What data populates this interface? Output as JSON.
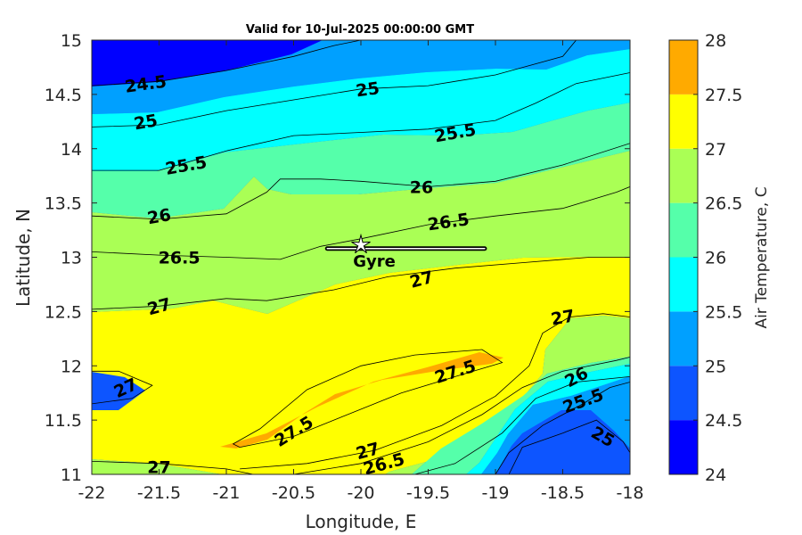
{
  "chart_data": {
    "type": "contour",
    "title": "Valid for 10-Jul-2025 00:00:00 GMT",
    "xlabel": "Longitude, E",
    "ylabel": "Latitude, N",
    "xlim": [
      -22,
      -18
    ],
    "ylim": [
      11,
      15
    ],
    "x_ticks": [
      "-22",
      "-21.5",
      "-21",
      "-20.5",
      "-20",
      "-19.5",
      "-19",
      "-18.5",
      "-18"
    ],
    "y_ticks": [
      "11",
      "11.5",
      "12",
      "12.5",
      "13",
      "13.5",
      "14",
      "14.5",
      "15"
    ],
    "colorbar": {
      "label": "Air Temperature, C",
      "range": [
        24,
        28
      ],
      "ticks": [
        "24",
        "24.5",
        "25",
        "25.5",
        "26",
        "26.5",
        "27",
        "27.5",
        "28"
      ],
      "levels": [
        {
          "min": 24.0,
          "max": 24.5,
          "color": "#0000ff"
        },
        {
          "min": 24.5,
          "max": 25.0,
          "color": "#0d55ff"
        },
        {
          "min": 25.0,
          "max": 25.5,
          "color": "#00a0ff"
        },
        {
          "min": 25.5,
          "max": 26.0,
          "color": "#00ffff"
        },
        {
          "min": 26.0,
          "max": 26.5,
          "color": "#55ffaa"
        },
        {
          "min": 26.5,
          "max": 27.0,
          "color": "#aaff55"
        },
        {
          "min": 27.0,
          "max": 27.5,
          "color": "#ffff00"
        },
        {
          "min": 27.5,
          "max": 28.0,
          "color": "#ffaa00"
        }
      ]
    },
    "contours": [
      {
        "level": 24.5,
        "points": [
          [
            -22,
            14.58
          ],
          [
            -21.5,
            14.62
          ],
          [
            -21,
            14.72
          ],
          [
            -20.5,
            14.85
          ],
          [
            -20.2,
            14.95
          ],
          [
            -20.0,
            15.0
          ]
        ]
      },
      {
        "level": 25.0,
        "points": [
          [
            -22,
            14.2
          ],
          [
            -21.5,
            14.22
          ],
          [
            -21,
            14.35
          ],
          [
            -20.5,
            14.45
          ],
          [
            -20,
            14.55
          ],
          [
            -19.5,
            14.58
          ],
          [
            -19,
            14.68
          ],
          [
            -18.5,
            14.85
          ],
          [
            -18.4,
            15.0
          ]
        ]
      },
      {
        "level": 25.5,
        "points": [
          [
            -22,
            13.8
          ],
          [
            -21.5,
            13.8
          ],
          [
            -21,
            13.98
          ],
          [
            -20.5,
            14.12
          ],
          [
            -20,
            14.15
          ],
          [
            -19.5,
            14.18
          ],
          [
            -19,
            14.26
          ],
          [
            -18.7,
            14.42
          ],
          [
            -18.4,
            14.6
          ],
          [
            -18,
            14.7
          ]
        ]
      },
      {
        "level": 26.0,
        "points": [
          [
            -22,
            13.38
          ],
          [
            -21.5,
            13.35
          ],
          [
            -21,
            13.4
          ],
          [
            -20.7,
            13.6
          ],
          [
            -20.6,
            13.72
          ],
          [
            -20.3,
            13.72
          ],
          [
            -20,
            13.7
          ],
          [
            -19.5,
            13.65
          ],
          [
            -19,
            13.7
          ],
          [
            -18.5,
            13.85
          ],
          [
            -18,
            14.05
          ]
        ]
      },
      {
        "level": 26.5,
        "points": [
          [
            -22,
            13.05
          ],
          [
            -21.5,
            13.02
          ],
          [
            -21,
            13.0
          ],
          [
            -20.6,
            12.98
          ],
          [
            -20.3,
            13.1
          ],
          [
            -20,
            13.17
          ],
          [
            -19.5,
            13.3
          ],
          [
            -19,
            13.38
          ],
          [
            -18.5,
            13.45
          ],
          [
            -18.1,
            13.6
          ],
          [
            -18,
            13.65
          ]
        ]
      },
      {
        "level": 27.0,
        "points": [
          [
            -22,
            12.52
          ],
          [
            -21.5,
            12.55
          ],
          [
            -21,
            12.62
          ],
          [
            -20.7,
            12.6
          ],
          [
            -20.2,
            12.7
          ],
          [
            -19.8,
            12.82
          ],
          [
            -19.3,
            12.9
          ],
          [
            -18.8,
            12.95
          ],
          [
            -18.3,
            13.0
          ],
          [
            -18,
            13.0
          ]
        ]
      },
      {
        "level": 27.0,
        "points": [
          [
            -22,
            11.65
          ],
          [
            -21.7,
            11.7
          ],
          [
            -21.55,
            11.82
          ],
          [
            -21.8,
            11.95
          ],
          [
            -22,
            11.95
          ]
        ]
      },
      {
        "level": 27.5,
        "points": [
          [
            -20.9,
            11.25
          ],
          [
            -20.5,
            11.35
          ],
          [
            -20.1,
            11.55
          ],
          [
            -19.7,
            11.75
          ],
          [
            -19.3,
            11.9
          ],
          [
            -18.95,
            12.03
          ],
          [
            -19.1,
            12.15
          ],
          [
            -19.6,
            12.1
          ],
          [
            -20.0,
            12.0
          ],
          [
            -20.4,
            11.78
          ],
          [
            -20.75,
            11.42
          ],
          [
            -20.95,
            11.28
          ],
          [
            -20.9,
            11.25
          ]
        ]
      },
      {
        "level": 27.0,
        "points": [
          [
            -20.9,
            11.05
          ],
          [
            -20.4,
            11.1
          ],
          [
            -19.9,
            11.22
          ],
          [
            -19.4,
            11.45
          ],
          [
            -19.0,
            11.72
          ],
          [
            -18.75,
            12.0
          ],
          [
            -18.65,
            12.3
          ],
          [
            -18.45,
            12.45
          ],
          [
            -18.2,
            12.48
          ],
          [
            -18,
            12.45
          ]
        ]
      },
      {
        "level": 26.5,
        "points": [
          [
            -20.5,
            11.0
          ],
          [
            -20.0,
            11.1
          ],
          [
            -19.5,
            11.3
          ],
          [
            -19.1,
            11.55
          ],
          [
            -18.8,
            11.8
          ],
          [
            -18.5,
            11.95
          ],
          [
            -18.1,
            12.05
          ],
          [
            -18,
            12.08
          ]
        ]
      },
      {
        "level": 26.0,
        "points": [
          [
            -19.6,
            11.0
          ],
          [
            -19.3,
            11.1
          ],
          [
            -18.95,
            11.38
          ],
          [
            -18.7,
            11.7
          ],
          [
            -18.4,
            11.85
          ],
          [
            -18,
            11.9
          ]
        ]
      },
      {
        "level": 25.5,
        "points": [
          [
            -19.0,
            11.0
          ],
          [
            -18.9,
            11.2
          ],
          [
            -18.65,
            11.45
          ],
          [
            -18.35,
            11.65
          ],
          [
            -18.15,
            11.8
          ],
          [
            -18,
            11.85
          ]
        ]
      },
      {
        "level": 25.0,
        "points": [
          [
            -18.9,
            11.0
          ],
          [
            -18.8,
            11.25
          ],
          [
            -18.5,
            11.38
          ],
          [
            -18.25,
            11.5
          ],
          [
            -18.05,
            11.3
          ],
          [
            -18,
            11.2
          ]
        ]
      },
      {
        "level": 27.0,
        "points": [
          [
            -22,
            11.12
          ],
          [
            -21.5,
            11.1
          ],
          [
            -21.0,
            11.05
          ],
          [
            -20.8,
            11.0
          ]
        ]
      }
    ],
    "contour_labels": [
      {
        "text": "24.5",
        "x": -21.6,
        "y": 14.6,
        "rot": -8
      },
      {
        "text": "25",
        "x": -19.95,
        "y": 14.55,
        "rot": -8
      },
      {
        "text": "25",
        "x": -21.6,
        "y": 14.25,
        "rot": -10
      },
      {
        "text": "25.5",
        "x": -19.3,
        "y": 14.15,
        "rot": -10
      },
      {
        "text": "25.5",
        "x": -21.3,
        "y": 13.85,
        "rot": -10
      },
      {
        "text": "26",
        "x": -19.55,
        "y": 13.65,
        "rot": 0
      },
      {
        "text": "26",
        "x": -21.5,
        "y": 13.38,
        "rot": -10
      },
      {
        "text": "26.5",
        "x": -19.35,
        "y": 13.33,
        "rot": -8
      },
      {
        "text": "26.5",
        "x": -21.35,
        "y": 13.0,
        "rot": 0
      },
      {
        "text": "27",
        "x": -19.55,
        "y": 12.8,
        "rot": -15
      },
      {
        "text": "27",
        "x": -21.5,
        "y": 12.55,
        "rot": -15
      },
      {
        "text": "27",
        "x": -18.5,
        "y": 12.45,
        "rot": -10
      },
      {
        "text": "27.5",
        "x": -19.3,
        "y": 11.95,
        "rot": -18
      },
      {
        "text": "26",
        "x": -18.4,
        "y": 11.9,
        "rot": -28
      },
      {
        "text": "25.5",
        "x": -18.35,
        "y": 11.68,
        "rot": -20
      },
      {
        "text": "27",
        "x": -21.75,
        "y": 11.8,
        "rot": -25
      },
      {
        "text": "27.5",
        "x": -20.5,
        "y": 11.4,
        "rot": -32
      },
      {
        "text": "25",
        "x": -18.2,
        "y": 11.35,
        "rot": 30
      },
      {
        "text": "27",
        "x": -19.95,
        "y": 11.22,
        "rot": -15
      },
      {
        "text": "26.5",
        "x": -19.83,
        "y": 11.1,
        "rot": -15
      },
      {
        "text": "27",
        "x": -21.5,
        "y": 11.07,
        "rot": 0
      }
    ],
    "marker": {
      "label": "Gyre",
      "x": -20.0,
      "y": 13.08,
      "track_x": [
        -20.25,
        -19.08
      ],
      "track_y": 13.08
    }
  }
}
